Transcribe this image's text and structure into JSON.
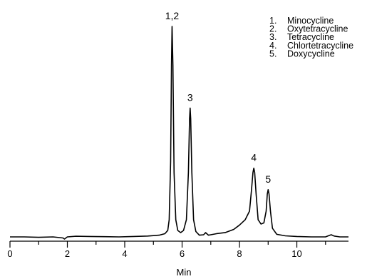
{
  "chart_data": {
    "type": "line",
    "xlabel": "Min",
    "ylabel": "",
    "xlim": [
      0,
      11.8
    ],
    "x_ticks": [
      0,
      2,
      4,
      6,
      8,
      10
    ],
    "grid": false,
    "legend_position": "top-right",
    "legend": [
      {
        "number": "1.",
        "name": "Minocycline"
      },
      {
        "number": "2.",
        "name": "Oxytetracycline"
      },
      {
        "number": "3.",
        "name": "Tetracycline"
      },
      {
        "number": "4.",
        "name": "Chlortetracycline"
      },
      {
        "number": "5.",
        "name": "Doxycycline"
      }
    ],
    "peaks": [
      {
        "label": "1,2",
        "x": 5.65,
        "height": 0.98
      },
      {
        "label": "3",
        "x": 6.28,
        "height": 0.6
      },
      {
        "label": "4",
        "x": 8.5,
        "height": 0.32
      },
      {
        "label": "5",
        "x": 9.0,
        "height": 0.22
      }
    ],
    "series": [
      {
        "x": [
          0,
          0.5,
          1.0,
          1.5,
          1.85,
          1.9,
          1.95,
          2.0,
          2.3,
          2.8,
          3.3,
          3.8,
          4.3,
          4.8,
          5.2,
          5.4,
          5.5,
          5.55,
          5.6,
          5.63,
          5.65,
          5.68,
          5.72,
          5.78,
          5.85,
          5.95,
          6.05,
          6.15,
          6.22,
          6.26,
          6.28,
          6.3,
          6.34,
          6.4,
          6.48,
          6.6,
          6.75,
          6.82,
          6.86,
          6.92,
          7.0,
          7.2,
          7.5,
          7.8,
          8.0,
          8.2,
          8.35,
          8.42,
          8.47,
          8.5,
          8.53,
          8.58,
          8.65,
          8.75,
          8.85,
          8.93,
          8.97,
          9.0,
          9.03,
          9.08,
          9.15,
          9.3,
          9.6,
          10.0,
          10.5,
          11.0,
          11.15,
          11.2,
          11.3,
          11.5,
          11.8
        ],
        "y": [
          0.0,
          0.0,
          -0.002,
          0.0,
          -0.005,
          -0.01,
          -0.005,
          0.0,
          0.003,
          0.002,
          0.001,
          0.0,
          0.002,
          0.004,
          0.008,
          0.015,
          0.03,
          0.08,
          0.35,
          0.8,
          0.98,
          0.8,
          0.3,
          0.08,
          0.03,
          0.02,
          0.03,
          0.08,
          0.3,
          0.55,
          0.6,
          0.55,
          0.3,
          0.08,
          0.025,
          0.008,
          0.01,
          0.02,
          0.015,
          0.008,
          0.01,
          0.015,
          0.02,
          0.035,
          0.055,
          0.08,
          0.12,
          0.22,
          0.3,
          0.32,
          0.3,
          0.2,
          0.08,
          0.06,
          0.065,
          0.12,
          0.2,
          0.22,
          0.2,
          0.12,
          0.04,
          0.012,
          0.005,
          0.002,
          0.0,
          0.0,
          0.008,
          0.01,
          0.004,
          0.0,
          0.0
        ]
      }
    ]
  },
  "style": {
    "line_color": "#000000",
    "axis_color": "#000000",
    "background": "#ffffff"
  }
}
